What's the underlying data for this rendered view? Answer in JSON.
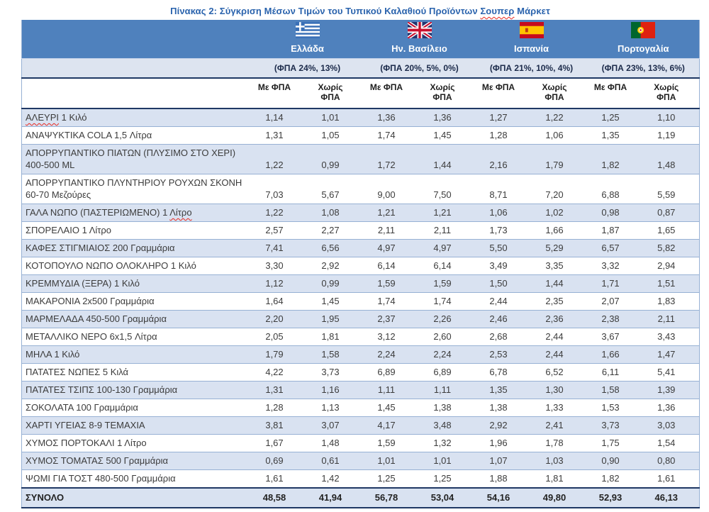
{
  "title": {
    "text": "Πίνακας 2: Σύγκριση Μέσων Τιμών του Τυπικού Καλαθιού Προϊόντων Σουπερ Μάρκετ",
    "misspelled": "Σουπερ"
  },
  "colors": {
    "header_band": "#4f81bd",
    "row_shade": "#d9e2f1",
    "vat_row_bg": "#dde4f0",
    "grid_line": "#97b1d4",
    "dark_line": "#1f3864",
    "title_blue": "#2a63ad",
    "body_text": "#3c3c3c",
    "header_text": "#ffffff",
    "vat_text": "#1b2a4a",
    "misspell_red": "#e8281e"
  },
  "table": {
    "countries": [
      {
        "slug": "greece",
        "name": "Ελλάδα",
        "flag_icon": "greece-flag-icon",
        "vat": "(ΦΠΑ 24%, 13%)"
      },
      {
        "slug": "uk",
        "name": "Ην. Βασίλειο",
        "flag_icon": "uk-flag-icon",
        "vat": "(ΦΠΑ 20%, 5%, 0%)"
      },
      {
        "slug": "spain",
        "name": "Ισπανία",
        "flag_icon": "spain-flag-icon",
        "vat": "(ΦΠΑ 21%, 10%, 4%)"
      },
      {
        "slug": "portugal",
        "name": "Πορτογαλία",
        "flag_icon": "portugal-flag-icon",
        "vat": "(ΦΠΑ 23%, 13%, 6%)"
      }
    ],
    "subheaders": {
      "with_vat": "Με ΦΠΑ",
      "without_vat": "Χωρίς ΦΠΑ"
    },
    "rows": [
      {
        "label": "ΑΛΕΥΡΙ 1 Κιλό",
        "misspelled": "ΑΛΕΥΡΙ",
        "values": [
          "1,14",
          "1,01",
          "1,36",
          "1,36",
          "1,27",
          "1,22",
          "1,25",
          "1,10"
        ]
      },
      {
        "label": "ΑΝΑΨΥΚΤΙΚΑ COLA 1,5 Λίτρα",
        "values": [
          "1,31",
          "1,05",
          "1,74",
          "1,45",
          "1,28",
          "1,06",
          "1,35",
          "1,19"
        ]
      },
      {
        "label": "ΑΠΟΡΡΥΠΑΝΤΙΚΟ ΠΙΑΤΩΝ (ΠΛΥΣΙΜΟ ΣΤΟ ΧΕΡΙ) 400-500 ML",
        "values": [
          "1,22",
          "0,99",
          "1,72",
          "1,44",
          "2,16",
          "1,79",
          "1,82",
          "1,48"
        ]
      },
      {
        "label": "ΑΠΟΡΡΥΠΑΝΤΙΚΟ ΠΛΥΝΤΗΡΙΟΥ ΡΟΥΧΩΝ ΣΚΟΝΗ 60-70 Μεζούρες",
        "values": [
          "7,03",
          "5,67",
          "9,00",
          "7,50",
          "8,71",
          "7,20",
          "6,88",
          "5,59"
        ]
      },
      {
        "label": "ΓΑΛΑ ΝΩΠΟ (ΠΑΣΤΕΡΙΩΜΕΝΟ) 1 Λίτρο",
        "misspelled": "Λίτρο",
        "values": [
          "1,22",
          "1,08",
          "1,21",
          "1,21",
          "1,06",
          "1,02",
          "0,98",
          "0,87"
        ]
      },
      {
        "label": "ΣΠΟΡΕΛΑΙΟ 1 Λίτρο",
        "values": [
          "2,57",
          "2,27",
          "2,11",
          "2,11",
          "1,73",
          "1,66",
          "1,87",
          "1,65"
        ]
      },
      {
        "label": "ΚΑΦΕΣ ΣΤΙΓΜΙΑΙΟΣ 200 Γραμμάρια",
        "values": [
          "7,41",
          "6,56",
          "4,97",
          "4,97",
          "5,50",
          "5,29",
          "6,57",
          "5,82"
        ]
      },
      {
        "label": "ΚΟΤΟΠΟΥΛΟ ΝΩΠΟ ΟΛΟΚΛΗΡΟ 1 Κιλό",
        "values": [
          "3,30",
          "2,92",
          "6,14",
          "6,14",
          "3,49",
          "3,35",
          "3,32",
          "2,94"
        ]
      },
      {
        "label": "ΚΡΕΜΜΥΔΙΑ (ΞΕΡΑ) 1 Κιλό",
        "values": [
          "1,12",
          "0,99",
          "1,59",
          "1,59",
          "1,50",
          "1,44",
          "1,71",
          "1,51"
        ]
      },
      {
        "label": "ΜΑΚΑΡΟΝΙΑ 2x500 Γραμμάρια",
        "values": [
          "1,64",
          "1,45",
          "1,74",
          "1,74",
          "2,44",
          "2,35",
          "2,07",
          "1,83"
        ]
      },
      {
        "label": "ΜΑΡΜΕΛΑΔΑ 450-500 Γραμμάρια",
        "values": [
          "2,20",
          "1,95",
          "2,37",
          "2,26",
          "2,46",
          "2,36",
          "2,38",
          "2,11"
        ]
      },
      {
        "label": "ΜΕΤΑΛΛΙΚΟ ΝΕΡΟ 6x1,5 Λίτρα",
        "values": [
          "2,05",
          "1,81",
          "3,12",
          "2,60",
          "2,68",
          "2,44",
          "3,67",
          "3,43"
        ]
      },
      {
        "label": "ΜΗΛΑ 1 Κιλό",
        "values": [
          "1,79",
          "1,58",
          "2,24",
          "2,24",
          "2,53",
          "2,44",
          "1,66",
          "1,47"
        ]
      },
      {
        "label": "ΠΑΤΑΤΕΣ ΝΩΠΕΣ 5 Κιλά",
        "values": [
          "4,22",
          "3,73",
          "6,89",
          "6,89",
          "6,78",
          "6,52",
          "6,11",
          "5,41"
        ]
      },
      {
        "label": "ΠΑΤΑΤΕΣ ΤΣΙΠΣ 100-130 Γραμμάρια",
        "values": [
          "1,31",
          "1,16",
          "1,11",
          "1,11",
          "1,35",
          "1,30",
          "1,58",
          "1,39"
        ]
      },
      {
        "label": "ΣΟΚΟΛΑΤΑ 100 Γραμμάρια",
        "values": [
          "1,28",
          "1,13",
          "1,45",
          "1,38",
          "1,38",
          "1,33",
          "1,53",
          "1,36"
        ]
      },
      {
        "label": "ΧΑΡΤΙ ΥΓΕΙΑΣ 8-9 ΤΕΜΑΧΙΑ",
        "values": [
          "3,81",
          "3,07",
          "4,17",
          "3,48",
          "2,92",
          "2,41",
          "3,73",
          "3,03"
        ]
      },
      {
        "label": "ΧΥΜΟΣ ΠΟΡΤΟΚΑΛΙ 1 Λίτρο",
        "values": [
          "1,67",
          "1,48",
          "1,59",
          "1,32",
          "1,96",
          "1,78",
          "1,75",
          "1,54"
        ]
      },
      {
        "label": "ΧΥΜΟΣ ΤΟΜΑΤΑΣ 500 Γραμμάρια",
        "values": [
          "0,69",
          "0,61",
          "1,01",
          "1,01",
          "1,07",
          "1,03",
          "0,90",
          "0,80"
        ]
      },
      {
        "label": "ΨΩΜΙ ΓΙΑ ΤΟΣΤ 480-500 Γραμμάρια",
        "values": [
          "1,61",
          "1,42",
          "1,25",
          "1,25",
          "1,88",
          "1,81",
          "1,82",
          "1,61"
        ]
      }
    ],
    "total": {
      "label": "ΣΥΝΟΛΟ",
      "values": [
        "48,58",
        "41,94",
        "56,78",
        "53,04",
        "54,16",
        "49,80",
        "52,93",
        "46,13"
      ]
    }
  }
}
